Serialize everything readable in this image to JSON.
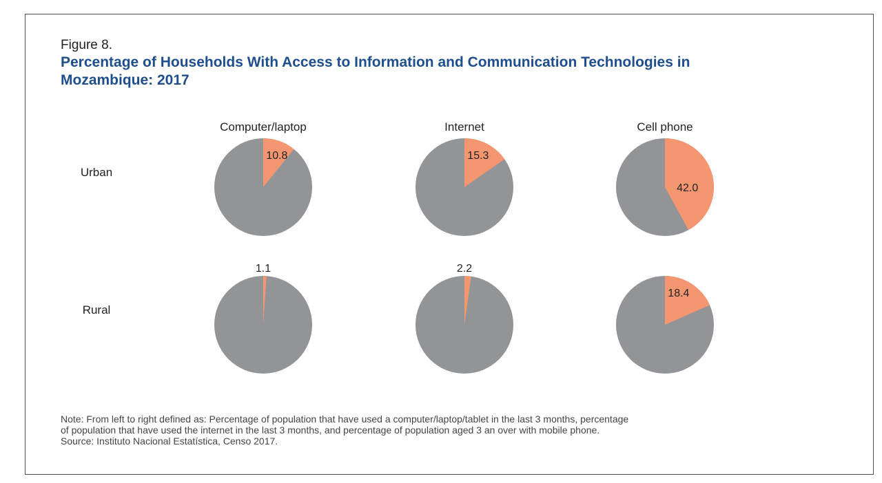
{
  "figure_label": "Figure 8.",
  "title_line1": "Percentage of Households With Access to Information and Communication Technologies in",
  "title_line2": "Mozambique: 2017",
  "colors": {
    "title": "#1f4e8c",
    "highlight": "#f4966f",
    "remainder": "#929497",
    "frame": "#4a4a4a"
  },
  "chart_data": {
    "type": "pie",
    "title": "Percentage of Households With Access to Information and Communication Technologies in Mozambique: 2017",
    "columns": [
      "Computer/laptop",
      "Internet",
      "Cell phone"
    ],
    "rows": [
      "Urban",
      "Rural"
    ],
    "values": [
      [
        10.8,
        15.3,
        42.0
      ],
      [
        1.1,
        2.2,
        18.4
      ]
    ],
    "labels": [
      [
        "10.8",
        "15.3",
        "42.0"
      ],
      [
        "1.1",
        "2.2",
        "18.4"
      ]
    ]
  },
  "note_line1": "Note: From left to right defined as: Percentage of population that have used a computer/laptop/tablet in the last 3 months, percentage",
  "note_line2": "of population that have used the internet in the last 3 months, and percentage of population aged 3 an over with mobile phone.",
  "source_line": "Source: Instituto Nacional Estatística, Censo 2017."
}
